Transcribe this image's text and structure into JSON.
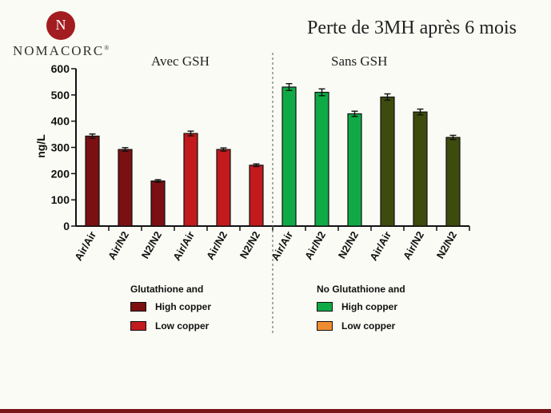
{
  "brand": {
    "logo_letter": "N",
    "name": "NOMACORC",
    "trademark": "®",
    "color": "#a31c1f"
  },
  "title": "Perte de 3MH après 6 mois",
  "group_labels": {
    "left": "Avec GSH",
    "right": "Sans GSH"
  },
  "legend": {
    "left": {
      "title": "Glutathione and",
      "items": [
        {
          "label": "High copper",
          "color": "#7b0f12"
        },
        {
          "label": "Low copper",
          "color": "#c21a1d"
        }
      ]
    },
    "right": {
      "title": "No Glutathione and",
      "items": [
        {
          "label": "High copper",
          "color": "#0faa45"
        },
        {
          "label": "Low copper",
          "color": "#f08c30"
        }
      ]
    }
  },
  "chart_data": {
    "type": "bar",
    "ylabel": "ng/L",
    "xlabel": "",
    "ylim": [
      0,
      600
    ],
    "yticks": [
      0,
      100,
      200,
      300,
      400,
      500,
      600
    ],
    "grid": false,
    "categories": [
      "Air/Air",
      "Air/N2",
      "N2/N2",
      "Air/Air",
      "Air/N2",
      "N2/N2",
      "Air/Air",
      "Air/N2",
      "N2/N2",
      "Air/Air",
      "Air/N2",
      "N2/N2"
    ],
    "values": [
      343,
      292,
      172,
      353,
      292,
      232,
      530,
      510,
      428,
      492,
      435,
      338
    ],
    "errors": [
      8,
      7,
      5,
      9,
      6,
      5,
      13,
      13,
      10,
      12,
      11,
      8
    ],
    "colors": [
      "#7b0f12",
      "#7b0f12",
      "#7b0f12",
      "#c21a1d",
      "#c21a1d",
      "#c21a1d",
      "#0faa45",
      "#0faa45",
      "#0faa45",
      "#3d4b0d",
      "#3d4b0d",
      "#3d4b0d"
    ],
    "divider_after_index": 5
  }
}
